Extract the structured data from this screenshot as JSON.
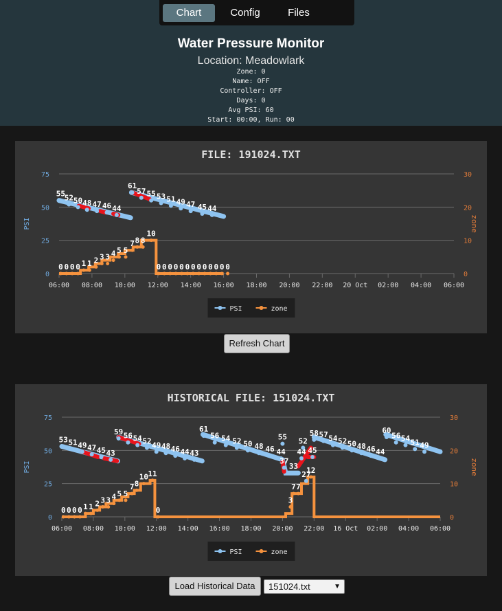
{
  "nav": {
    "tabs": [
      {
        "label": "Chart",
        "active": true
      },
      {
        "label": "Config",
        "active": false
      },
      {
        "label": "Files",
        "active": false
      }
    ]
  },
  "header": {
    "title": "Water Pressure Monitor",
    "location": "Location: Meadowlark",
    "info_lines": [
      "Zone: 0",
      "Name: OFF",
      "Controller: OFF",
      "Days: 0",
      "Avg PSI: 60",
      "Start: 00:00, Run: 00"
    ]
  },
  "refresh_button": "Refresh Chart",
  "load_button": "Load Historical Data",
  "file_select": {
    "selected": "151024.txt"
  },
  "colors": {
    "psi": "#8ec3f0",
    "zone": "#f5923e",
    "alert": "#e8141c",
    "psi_axis": "#6fa8dc",
    "zone_axis": "#e07b39"
  },
  "chart_data": [
    {
      "type": "line",
      "title": "FILE: 191024.TXT",
      "ylabel": "PSI",
      "y2label": "zone",
      "ylim": [
        0,
        75
      ],
      "y2lim": [
        0,
        30
      ],
      "yticks": [
        "0",
        "25",
        "50",
        "75"
      ],
      "y2ticks": [
        "0",
        "10",
        "20",
        "30"
      ],
      "xticks": [
        "06:00",
        "08:00",
        "10:00",
        "12:00",
        "14:00",
        "16:00",
        "18:00",
        "20:00",
        "22:00",
        "20 Oct",
        "02:00",
        "04:00",
        "06:00"
      ],
      "legend": [
        "PSI",
        "zone"
      ],
      "psi_labeled": [
        [
          6.1,
          55
        ],
        [
          6.6,
          52
        ],
        [
          7.15,
          50
        ],
        [
          7.7,
          48
        ],
        [
          8.3,
          47
        ],
        [
          8.9,
          46
        ],
        [
          9.5,
          44
        ],
        [
          10.45,
          61
        ],
        [
          11.0,
          57
        ],
        [
          11.6,
          55
        ],
        [
          12.2,
          53
        ],
        [
          12.8,
          51
        ],
        [
          13.4,
          49
        ],
        [
          14.0,
          47
        ],
        [
          14.7,
          45
        ],
        [
          15.3,
          44
        ]
      ],
      "psi_segments": [
        [
          [
            6.0,
            55
          ],
          [
            10.35,
            42
          ]
        ],
        [
          [
            10.4,
            61
          ],
          [
            16.0,
            43
          ]
        ]
      ],
      "psi_alert": [
        [
          [
            7.2,
            51
          ],
          [
            7.8,
            49
          ]
        ],
        [
          [
            8.5,
            47
          ],
          [
            8.8,
            46
          ]
        ],
        [
          [
            9.3,
            45
          ],
          [
            9.6,
            44
          ]
        ],
        [
          [
            10.45,
            61
          ],
          [
            11.5,
            56
          ]
        ]
      ],
      "zone_steps": [
        [
          6.0,
          0
        ],
        [
          7.3,
          0
        ],
        [
          7.3,
          1
        ],
        [
          7.8,
          1
        ],
        [
          7.8,
          2
        ],
        [
          8.2,
          2
        ],
        [
          8.2,
          3
        ],
        [
          8.6,
          3
        ],
        [
          8.6,
          4
        ],
        [
          9.1,
          4
        ],
        [
          9.1,
          5
        ],
        [
          9.6,
          5
        ],
        [
          9.6,
          6
        ],
        [
          10.0,
          6
        ],
        [
          10.0,
          7
        ],
        [
          10.5,
          7
        ],
        [
          10.5,
          8
        ],
        [
          11.0,
          8
        ],
        [
          11.0,
          10
        ],
        [
          11.9,
          10
        ],
        [
          11.9,
          0
        ],
        [
          16.0,
          0
        ]
      ],
      "zone_labels": [
        [
          6.1,
          0
        ],
        [
          6.45,
          0
        ],
        [
          6.8,
          0
        ],
        [
          7.15,
          0
        ],
        [
          7.5,
          1
        ],
        [
          7.85,
          1
        ],
        [
          8.25,
          2
        ],
        [
          8.6,
          3
        ],
        [
          8.95,
          3
        ],
        [
          9.3,
          4
        ],
        [
          9.65,
          5
        ],
        [
          10.05,
          5
        ],
        [
          10.45,
          7
        ],
        [
          10.75,
          8
        ],
        [
          11.1,
          8
        ],
        [
          11.6,
          10
        ],
        [
          12.05,
          0
        ],
        [
          12.4,
          0
        ],
        [
          12.75,
          0
        ],
        [
          13.1,
          0
        ],
        [
          13.45,
          0
        ],
        [
          13.8,
          0
        ],
        [
          14.15,
          0
        ],
        [
          14.5,
          0
        ],
        [
          14.85,
          0
        ],
        [
          15.2,
          0
        ],
        [
          15.55,
          0
        ],
        [
          15.9,
          0
        ],
        [
          16.25,
          0
        ]
      ]
    },
    {
      "type": "line",
      "title": "HISTORICAL FILE: 151024.TXT",
      "ylabel": "PSI",
      "y2label": "zone",
      "ylim": [
        0,
        75
      ],
      "y2lim": [
        0,
        30
      ],
      "yticks": [
        "0",
        "25",
        "50",
        "75"
      ],
      "y2ticks": [
        "0",
        "10",
        "20",
        "30"
      ],
      "xticks": [
        "06:00",
        "08:00",
        "10:00",
        "12:00",
        "14:00",
        "16:00",
        "18:00",
        "20:00",
        "22:00",
        "16 Oct",
        "02:00",
        "04:00",
        "06:00"
      ],
      "legend": [
        "PSI",
        "zone"
      ],
      "psi_labeled": [
        [
          6.1,
          53
        ],
        [
          6.7,
          51
        ],
        [
          7.3,
          49
        ],
        [
          7.9,
          47
        ],
        [
          8.5,
          45
        ],
        [
          9.1,
          43
        ],
        [
          9.6,
          59
        ],
        [
          10.2,
          56
        ],
        [
          10.8,
          54
        ],
        [
          11.4,
          52
        ],
        [
          12.0,
          49
        ],
        [
          12.6,
          48
        ],
        [
          13.2,
          46
        ],
        [
          13.8,
          44
        ],
        [
          14.4,
          43
        ],
        [
          15.0,
          61
        ],
        [
          15.7,
          56
        ],
        [
          16.4,
          54
        ],
        [
          17.1,
          52
        ],
        [
          17.8,
          50
        ],
        [
          18.5,
          48
        ],
        [
          19.2,
          46
        ],
        [
          19.9,
          44
        ],
        [
          20.0,
          55
        ],
        [
          20.1,
          37
        ],
        [
          20.7,
          33
        ],
        [
          21.2,
          44
        ],
        [
          21.3,
          52
        ],
        [
          21.5,
          27
        ],
        [
          21.9,
          45
        ],
        [
          22.0,
          58
        ],
        [
          22.6,
          57
        ],
        [
          23.2,
          54
        ],
        [
          23.8,
          52
        ],
        [
          24.4,
          50
        ],
        [
          25.0,
          48
        ],
        [
          25.6,
          46
        ],
        [
          26.2,
          44
        ],
        [
          26.6,
          60
        ],
        [
          27.2,
          56
        ],
        [
          27.8,
          54
        ],
        [
          28.4,
          51
        ],
        [
          29.0,
          49
        ]
      ],
      "psi_segments": [
        [
          [
            6.0,
            53
          ],
          [
            9.55,
            42
          ]
        ],
        [
          [
            9.6,
            60
          ],
          [
            14.9,
            42
          ]
        ],
        [
          [
            14.95,
            62
          ],
          [
            20.0,
            43
          ]
        ],
        [
          [
            20.05,
            41
          ],
          [
            20.2,
            33
          ],
          [
            21.0,
            33
          ]
        ],
        [
          [
            22.0,
            60
          ],
          [
            26.5,
            43
          ]
        ],
        [
          [
            26.55,
            62
          ],
          [
            30.0,
            49
          ]
        ]
      ],
      "psi_alert": [
        [
          [
            7.3,
            49
          ],
          [
            8.3,
            45
          ]
        ],
        [
          [
            8.7,
            44
          ],
          [
            9.5,
            42
          ]
        ],
        [
          [
            9.6,
            60
          ],
          [
            10.9,
            55
          ]
        ],
        [
          [
            20.0,
            42
          ],
          [
            20.1,
            34
          ]
        ],
        [
          [
            21.0,
            38
          ],
          [
            21.8,
            52
          ]
        ],
        [
          [
            21.6,
            45
          ],
          [
            22.0,
            45
          ]
        ]
      ],
      "zone_steps": [
        [
          6.0,
          0
        ],
        [
          7.5,
          0
        ],
        [
          7.5,
          1
        ],
        [
          8.0,
          1
        ],
        [
          8.0,
          2
        ],
        [
          8.4,
          2
        ],
        [
          8.4,
          3
        ],
        [
          8.8,
          3
        ],
        [
          8.8,
          4
        ],
        [
          9.3,
          4
        ],
        [
          9.3,
          5
        ],
        [
          9.8,
          5
        ],
        [
          9.8,
          6
        ],
        [
          10.2,
          6
        ],
        [
          10.2,
          7
        ],
        [
          10.6,
          7
        ],
        [
          10.6,
          8
        ],
        [
          11.0,
          8
        ],
        [
          11.0,
          10
        ],
        [
          11.6,
          10
        ],
        [
          11.6,
          11
        ],
        [
          11.9,
          11
        ],
        [
          11.9,
          0
        ],
        [
          20.2,
          0
        ],
        [
          20.2,
          1
        ],
        [
          20.6,
          1
        ],
        [
          20.6,
          7
        ],
        [
          21.2,
          7
        ],
        [
          21.2,
          10
        ],
        [
          21.6,
          10
        ],
        [
          21.6,
          12
        ],
        [
          22.0,
          12
        ],
        [
          22.0,
          0
        ],
        [
          30.0,
          0
        ]
      ],
      "zone_labels": [
        [
          6.1,
          0
        ],
        [
          6.45,
          0
        ],
        [
          6.8,
          0
        ],
        [
          7.15,
          0
        ],
        [
          7.5,
          1
        ],
        [
          7.85,
          1
        ],
        [
          8.25,
          2
        ],
        [
          8.6,
          3
        ],
        [
          8.95,
          3
        ],
        [
          9.3,
          4
        ],
        [
          9.65,
          5
        ],
        [
          10.05,
          5
        ],
        [
          10.45,
          7
        ],
        [
          10.75,
          8
        ],
        [
          11.2,
          10
        ],
        [
          11.75,
          11
        ],
        [
          12.1,
          0
        ],
        [
          20.5,
          3
        ],
        [
          20.7,
          7
        ],
        [
          21.0,
          7
        ],
        [
          21.8,
          12
        ]
      ]
    }
  ]
}
